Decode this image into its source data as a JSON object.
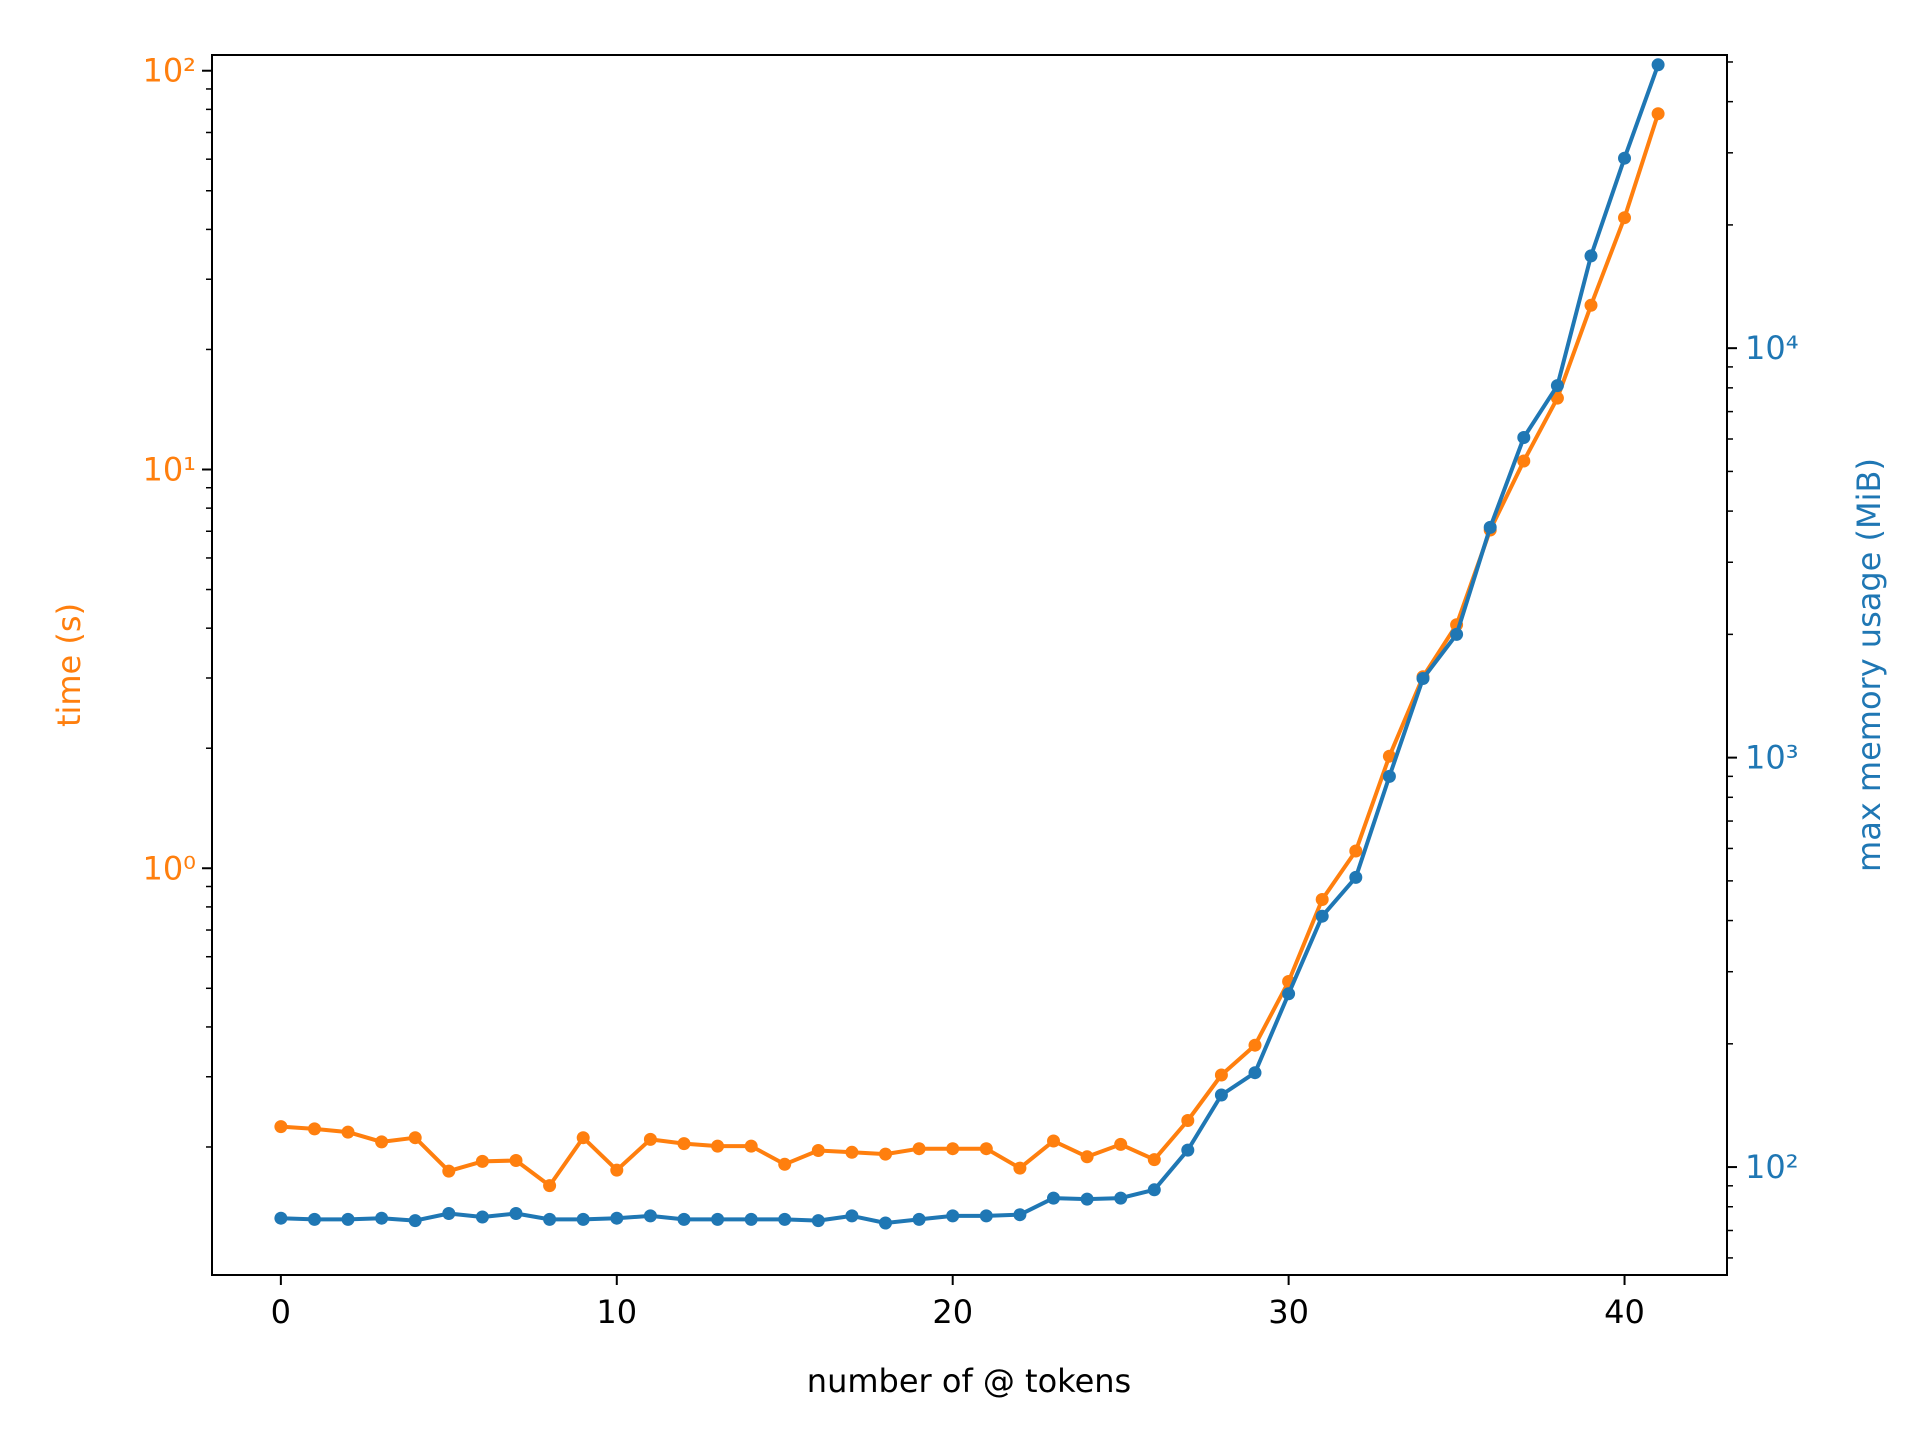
{
  "chart_data": {
    "type": "line",
    "xlabel": "number of @ tokens",
    "ylabel_left": "time (s)",
    "ylabel_right": "max memory usage (MiB)",
    "xlim": [
      -2.05,
      43.05
    ],
    "ylim_left": [
      0.0955,
      109.5
    ],
    "ylim_right": [
      54.5,
      52000
    ],
    "yscale_left": "log",
    "yscale_right": "log",
    "grid": false,
    "x_ticks": [
      0,
      10,
      20,
      30,
      40
    ],
    "y_left_ticks": [
      {
        "value": 1,
        "label": "10⁰"
      },
      {
        "value": 10,
        "label": "10¹"
      },
      {
        "value": 100,
        "label": "10²"
      }
    ],
    "y_right_ticks": [
      {
        "value": 100,
        "label": "10²"
      },
      {
        "value": 1000,
        "label": "10³"
      },
      {
        "value": 10000,
        "label": "10⁴"
      }
    ],
    "colors": {
      "time": "#ff7f0e",
      "memory": "#1f77b4",
      "axis": "#000000"
    },
    "series": [
      {
        "axis": "left",
        "color": "#ff7f0e",
        "x": [
          0,
          1,
          2,
          3,
          4,
          5,
          6,
          7,
          8,
          9,
          10,
          11,
          12,
          13,
          14,
          15,
          16,
          17,
          18,
          19,
          20,
          21,
          22,
          23,
          24,
          25,
          26,
          27,
          28,
          29,
          30,
          31,
          32,
          33,
          34,
          35,
          36,
          37,
          38,
          39,
          40,
          41
        ],
        "values": [
          0.225,
          0.222,
          0.218,
          0.206,
          0.211,
          0.174,
          0.184,
          0.185,
          0.16,
          0.211,
          0.175,
          0.209,
          0.204,
          0.201,
          0.201,
          0.181,
          0.196,
          0.194,
          0.192,
          0.198,
          0.198,
          0.198,
          0.177,
          0.207,
          0.189,
          0.203,
          0.186,
          0.233,
          0.303,
          0.36,
          0.52,
          0.835,
          1.105,
          1.91,
          3.02,
          4.08,
          7.05,
          10.5,
          15.1,
          25.8,
          42.8,
          78.0
        ]
      },
      {
        "axis": "right",
        "color": "#1f77b4",
        "x": [
          0,
          1,
          2,
          3,
          4,
          5,
          6,
          7,
          8,
          9,
          10,
          11,
          12,
          13,
          14,
          15,
          16,
          17,
          18,
          19,
          20,
          21,
          22,
          23,
          24,
          25,
          26,
          27,
          28,
          29,
          30,
          31,
          32,
          33,
          34,
          35,
          36,
          37,
          38,
          39,
          40,
          41
        ],
        "values": [
          75,
          74.5,
          74.5,
          75,
          74,
          77,
          75.5,
          77,
          74.5,
          74.5,
          75,
          76,
          74.5,
          74.5,
          74.5,
          74.5,
          74,
          76,
          73,
          74.5,
          76,
          76,
          76.5,
          84,
          83.5,
          84,
          88,
          110,
          150,
          170,
          265,
          410,
          510,
          900,
          1560,
          2000,
          3650,
          6050,
          8100,
          16800,
          29100,
          49200
        ]
      }
    ]
  }
}
